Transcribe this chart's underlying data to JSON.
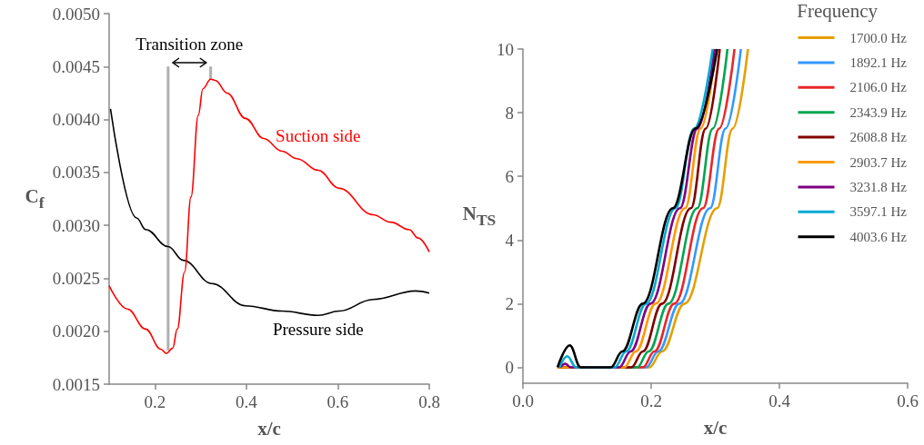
{
  "chart_data": [
    {
      "type": "line",
      "xlabel": "x/c",
      "ylabel": "C$_{f}$",
      "xlim": [
        0.1,
        0.8
      ],
      "xticks": [
        0.2,
        0.4,
        0.6,
        0.8
      ],
      "ylim": [
        0.0015,
        0.005
      ],
      "yticks": [
        {
          "value": 0.0015,
          "label": "0.0015"
        },
        {
          "value": 0.002,
          "label": "0.0020"
        },
        {
          "value": 0.0025,
          "label": "0.0025"
        },
        {
          "value": 0.003,
          "label": "0.0030"
        },
        {
          "value": 0.0035,
          "label": "0.0035"
        },
        {
          "value": 0.004,
          "label": "0.0040"
        },
        {
          "value": 0.0045,
          "label": "0.0045"
        },
        {
          "value": 0.005,
          "label": "0.0050"
        }
      ],
      "grid": false,
      "legend": false,
      "marker": "none",
      "line_style": "solid",
      "annotations": [
        "Transition zone"
      ],
      "series": [
        {
          "name": "Pressure side",
          "color": "#000000",
          "x": [
            0.103,
            0.16,
            0.18,
            0.229,
            0.262,
            0.325,
            0.398,
            0.478,
            0.557,
            0.603,
            0.677,
            0.77,
            0.8
          ],
          "values": [
            0.0041,
            0.00307,
            0.00296,
            0.0028,
            0.00267,
            0.00245,
            0.00224,
            0.00219,
            0.00215,
            0.00219,
            0.0023,
            0.00238,
            0.00236
          ]
        },
        {
          "name": "Suction side",
          "color": "#ff0000",
          "x": [
            0.1,
            0.14,
            0.18,
            0.213,
            0.225,
            0.239,
            0.249,
            0.265,
            0.279,
            0.295,
            0.305,
            0.322,
            0.332,
            0.358,
            0.398,
            0.438,
            0.478,
            0.511,
            0.557,
            0.603,
            0.677,
            0.716,
            0.756,
            0.776,
            0.8
          ],
          "values": [
            0.00243,
            0.00221,
            0.00202,
            0.00183,
            0.00179,
            0.00184,
            0.00202,
            0.00256,
            0.00327,
            0.00404,
            0.00429,
            0.00438,
            0.00437,
            0.00425,
            0.00401,
            0.00382,
            0.0037,
            0.00363,
            0.00352,
            0.00335,
            0.0031,
            0.00303,
            0.00296,
            0.00288,
            0.00275
          ]
        },
        {
          "color": "#b0b0b0",
          "x": [
            0.229,
            0.229
          ],
          "values": [
            0.0045,
            0.00182
          ]
        },
        {
          "color": "#b0b0b0",
          "x": [
            0.322,
            0.322
          ],
          "values": [
            0.0045,
            0.00438
          ]
        }
      ]
    },
    {
      "type": "line",
      "xlabel": "x/c",
      "ylabel": "N$_{TS}$",
      "legend_title": "Frequency",
      "xlim": [
        0,
        0.6
      ],
      "xticks": [
        {
          "value": 0,
          "label": "0.0"
        },
        {
          "value": 0.2,
          "label": "0.2"
        },
        {
          "value": 0.4,
          "label": "0.4"
        },
        {
          "value": 0.6,
          "label": "0.6"
        }
      ],
      "ylim": [
        -0.5,
        10
      ],
      "yticks": [
        0,
        2,
        4,
        6,
        8,
        10
      ],
      "grid": false,
      "legend": "top right",
      "marker": "none",
      "line_style": "solid",
      "series": [
        {
          "name": "1700.0 Hz",
          "color": "#e69f00",
          "x": [
            0.054,
            0.197,
            0.217,
            0.252,
            0.303,
            0.327,
            0.351
          ],
          "values": [
            0,
            0,
            0.5,
            2,
            5,
            7.5,
            10
          ]
        },
        {
          "name": "1892.1 Hz",
          "color": "#3399ff",
          "x": [
            0.054,
            0.192,
            0.211,
            0.244,
            0.292,
            0.316,
            0.34
          ],
          "values": [
            0,
            0,
            0.5,
            2,
            5,
            7.5,
            10
          ]
        },
        {
          "name": "2106.0 Hz",
          "color": "#e8262a",
          "x": [
            0.054,
            0.187,
            0.205,
            0.236,
            0.281,
            0.306,
            0.33
          ],
          "values": [
            0,
            0,
            0.5,
            2,
            5,
            7.5,
            10
          ]
        },
        {
          "name": "2343.9 Hz",
          "color": "#00a550",
          "x": [
            0.054,
            0.178,
            0.196,
            0.227,
            0.272,
            0.296,
            0.319
          ],
          "values": [
            0,
            0,
            0.5,
            2,
            5,
            7.5,
            10
          ]
        },
        {
          "name": "2608.8 Hz",
          "color": "#800000",
          "x": [
            0.054,
            0.169,
            0.187,
            0.217,
            0.262,
            0.285,
            0.307
          ],
          "values": [
            0,
            0,
            0.5,
            2,
            5,
            7.5,
            10
          ]
        },
        {
          "name": "2903.7 Hz",
          "color": "#ff9900",
          "x": [
            0.054,
            0.158,
            0.176,
            0.207,
            0.253,
            0.277,
            0.301
          ],
          "values": [
            0,
            0,
            0.5,
            2,
            5,
            7.5,
            10
          ]
        },
        {
          "name": "3231.8 Hz",
          "color": "#800080",
          "x": [
            0.058,
            0.066,
            0.075,
            0.15,
            0.168,
            0.199,
            0.245,
            0.272,
            0.299
          ],
          "values": [
            0,
            0.11,
            0,
            0,
            0.5,
            2,
            5,
            7.5,
            10
          ]
        },
        {
          "name": "3597.1 Hz",
          "color": "#00a9d4",
          "x": [
            0.057,
            0.069,
            0.083,
            0.143,
            0.161,
            0.192,
            0.238,
            0.267,
            0.296
          ],
          "values": [
            0,
            0.35,
            0,
            0,
            0.5,
            2,
            5,
            7.5,
            10
          ]
        },
        {
          "name": "4003.6 Hz",
          "color": "#000000",
          "x": [
            0.054,
            0.073,
            0.09,
            0.137,
            0.155,
            0.187,
            0.234,
            0.269,
            0.303
          ],
          "values": [
            0,
            0.69,
            0,
            0,
            0.5,
            2,
            5,
            7.5,
            10
          ]
        }
      ]
    }
  ]
}
